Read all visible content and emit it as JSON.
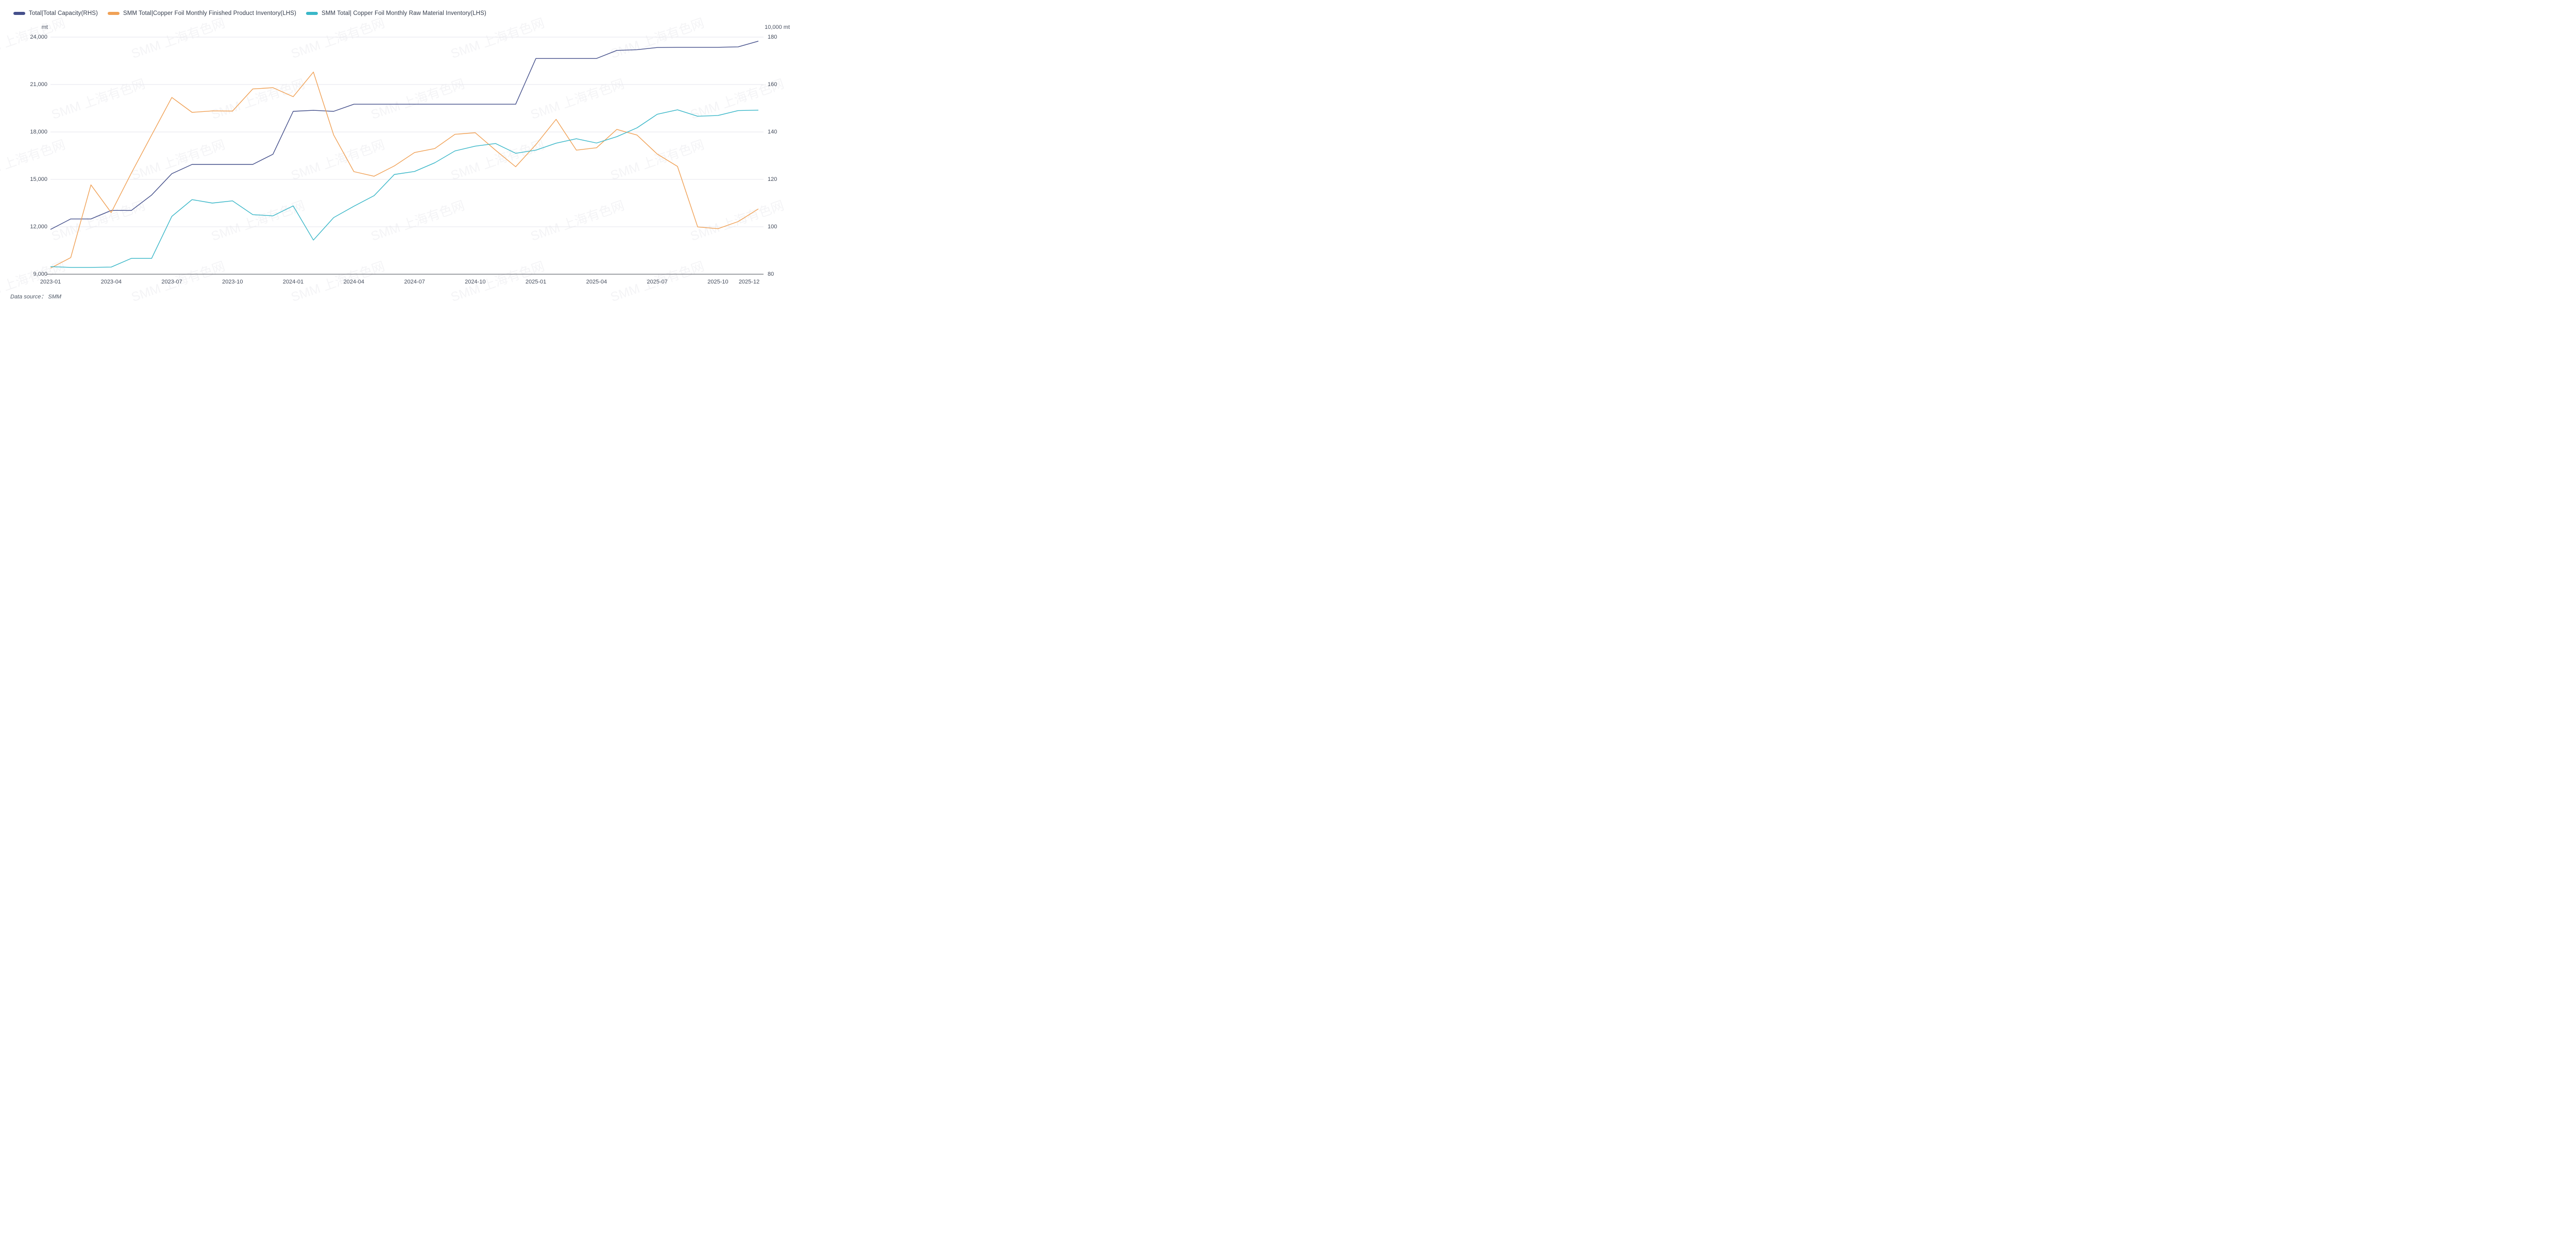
{
  "legend": {
    "items": [
      {
        "label": "Total|Total Capacity(RHS)",
        "color": "#45508b"
      },
      {
        "label": "SMM Total|Copper Foil Monthly Finished Product Inventory(LHS)",
        "color": "#f0a156"
      },
      {
        "label": "SMM Total| Copper Foil Monthly Raw Material Inventory(LHS)",
        "color": "#3ab7c8"
      }
    ]
  },
  "axes": {
    "left": {
      "unit": "mt",
      "ticks": [
        "24,000",
        "21,000",
        "18,000",
        "15,000",
        "12,000",
        "9,000"
      ]
    },
    "right": {
      "unit": "10,000 mt",
      "ticks": [
        "180",
        "160",
        "140",
        "120",
        "100",
        "80"
      ]
    },
    "x": {
      "shown_labels": [
        "2023-01",
        "2023-04",
        "2023-07",
        "2023-10",
        "2024-01",
        "2024-04",
        "2024-07",
        "2024-10",
        "2025-01",
        "2025-04",
        "2025-07",
        "2025-10",
        "2025-12"
      ]
    }
  },
  "footer": {
    "source_label": "Data source：  SMM"
  },
  "watermark": {
    "text": "SMM 上海有色网"
  },
  "colors": {
    "capacity": "#45508b",
    "finished_inventory": "#f0a156",
    "raw_inventory": "#3ab7c8",
    "gridline": "#e6e6ec",
    "axis_line": "#6b6e76",
    "text": "#434b5b"
  },
  "chart_data": {
    "type": "line",
    "title": "",
    "x": [
      "2023-01",
      "2023-02",
      "2023-03",
      "2023-04",
      "2023-05",
      "2023-06",
      "2023-07",
      "2023-08",
      "2023-09",
      "2023-10",
      "2023-11",
      "2023-12",
      "2024-01",
      "2024-02",
      "2024-03",
      "2024-04",
      "2024-05",
      "2024-06",
      "2024-07",
      "2024-08",
      "2024-09",
      "2024-10",
      "2024-11",
      "2024-12",
      "2025-01",
      "2025-02",
      "2025-03",
      "2025-04",
      "2025-05",
      "2025-06",
      "2025-07",
      "2025-08",
      "2025-09",
      "2025-10",
      "2025-11",
      "2025-12"
    ],
    "left_axis": {
      "label": "mt",
      "range": [
        9000,
        24000
      ],
      "tick_step": 3000
    },
    "right_axis": {
      "label": "10,000 mt",
      "range": [
        80,
        180
      ],
      "tick_step": 20
    },
    "grid": "horizontal",
    "legend_position": "top-left",
    "series": [
      {
        "name": "Total|Total Capacity(RHS)",
        "axis": "right",
        "color": "#45508b",
        "values": [
          98.9,
          103.3,
          103.3,
          106.9,
          106.9,
          113.4,
          122.4,
          126.3,
          126.3,
          126.3,
          126.3,
          130.6,
          148.7,
          149.1,
          148.7,
          151.7,
          151.7,
          151.7,
          151.7,
          151.7,
          151.7,
          151.7,
          151.7,
          151.7,
          171.0,
          171.0,
          171.0,
          171.0,
          174.4,
          174.7,
          175.6,
          175.7,
          175.7,
          175.7,
          175.9,
          178.3
        ]
      },
      {
        "name": "SMM Total|Copper Foil Monthly Finished Product Inventory(LHS)",
        "axis": "left",
        "color": "#f0a156",
        "values": [
          9380,
          10050,
          14650,
          12900,
          15400,
          17800,
          20180,
          19240,
          19330,
          19320,
          20720,
          20800,
          20230,
          21790,
          17810,
          15490,
          15200,
          15850,
          16700,
          16950,
          17850,
          17950,
          16850,
          15800,
          17200,
          18800,
          16850,
          17000,
          18160,
          17800,
          16600,
          15820,
          11990,
          11880,
          12330,
          13130
        ]
      },
      {
        "name": "SMM Total| Copper Foil Monthly Raw Material Inventory(LHS)",
        "axis": "left",
        "color": "#3ab7c8",
        "values": [
          9480,
          9430,
          9430,
          9450,
          10000,
          10000,
          12660,
          13720,
          13500,
          13640,
          12770,
          12690,
          13320,
          11160,
          12580,
          13300,
          13970,
          15310,
          15500,
          16050,
          16800,
          17100,
          17270,
          16650,
          16850,
          17290,
          17570,
          17300,
          17700,
          18260,
          19120,
          19400,
          18990,
          19040,
          19350,
          19380
        ]
      }
    ]
  },
  "geometry_note": "dual-axis monthly line chart, Jan 2023 - Dec 2025"
}
